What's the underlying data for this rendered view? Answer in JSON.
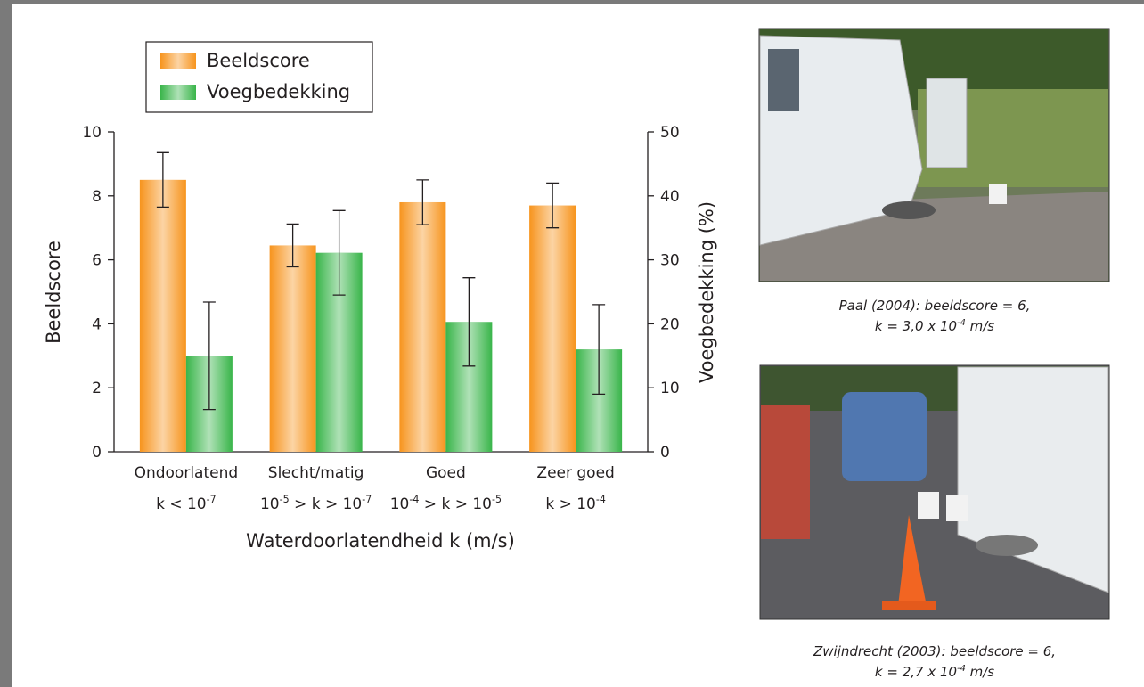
{
  "chart_data": {
    "type": "bar",
    "categories": [
      "Ondoorlatend",
      "Slecht/matig",
      "Goed",
      "Zeer goed"
    ],
    "category_sublabels": [
      [
        {
          "text": "k < 10"
        },
        {
          "sup": "-7"
        }
      ],
      [
        {
          "text": "10"
        },
        {
          "sup": "-5"
        },
        {
          "text": " > k > 10"
        },
        {
          "sup": "-7"
        }
      ],
      [
        {
          "text": "10"
        },
        {
          "sup": "-4"
        },
        {
          "text": " > k > 10"
        },
        {
          "sup": "-5"
        }
      ],
      [
        {
          "text": "k > 10"
        },
        {
          "sup": "-4"
        }
      ]
    ],
    "x_label": "Waterdoorlatendheid k (m/s)",
    "y_label": "Beeldscore",
    "y2_label": "Voegbedekking (%)",
    "ylim": [
      0,
      10
    ],
    "yticks": [
      0,
      2,
      4,
      6,
      8,
      10
    ],
    "y2lim": [
      0,
      50
    ],
    "y2ticks": [
      0,
      10,
      20,
      30,
      40,
      50
    ],
    "legend": "top-left",
    "series": [
      {
        "name": "Beeldscore",
        "color": "#f7941d",
        "values": [
          8.5,
          6.45,
          7.8,
          7.7
        ],
        "errors": [
          0.85,
          0.67,
          0.7,
          0.7
        ]
      },
      {
        "name": "Voegbedekking",
        "color": "#39b54a",
        "axis": "y2",
        "values": [
          15,
          31.1,
          20.3,
          16
        ],
        "errors": [
          8.4,
          6.6,
          6.9,
          7
        ]
      }
    ]
  },
  "photos": [
    {
      "caption": [
        [
          {
            "text": "Paal (2004): beeldscore = 6,"
          }
        ],
        [
          {
            "text": "k = 3,0 x 10"
          },
          {
            "sup": "-4"
          },
          {
            "text": " m/s"
          }
        ]
      ]
    },
    {
      "caption": [
        [
          {
            "text": "Zwijndrecht (2003): beeldscore = 6,"
          }
        ],
        [
          {
            "text": "k = 2,7 x 10"
          },
          {
            "sup": "-4"
          },
          {
            "text": " m/s"
          }
        ]
      ]
    }
  ]
}
